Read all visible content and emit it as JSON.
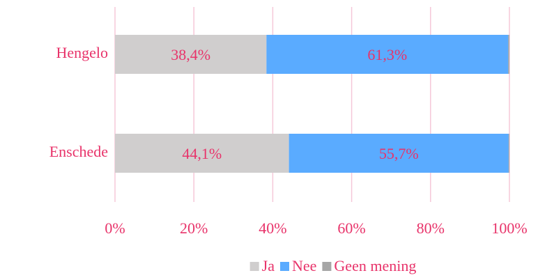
{
  "chart_data": {
    "type": "stacked_barh",
    "categories": [
      "Hengelo",
      "Enschede"
    ],
    "series": [
      {
        "name": "Ja",
        "color": "#d0cece",
        "values": [
          38.4,
          44.1
        ],
        "value_labels": [
          "38,4%",
          "44,1%"
        ]
      },
      {
        "name": "Nee",
        "color": "#5aabff",
        "values": [
          61.3,
          55.7
        ],
        "value_labels": [
          "61,3%",
          "55,7%"
        ]
      },
      {
        "name": "Geen mening",
        "color": "#a6a6a6",
        "values": [
          0.3,
          0.2
        ]
      }
    ],
    "xlim": [
      0,
      100
    ],
    "xticks": [
      {
        "value": 0,
        "label": "0%"
      },
      {
        "value": 20,
        "label": "20%"
      },
      {
        "value": 40,
        "label": "40%"
      },
      {
        "value": 60,
        "label": "60%"
      },
      {
        "value": 80,
        "label": "80%"
      },
      {
        "value": 100,
        "label": "100%"
      }
    ],
    "grid": true,
    "legend": "bottom"
  }
}
